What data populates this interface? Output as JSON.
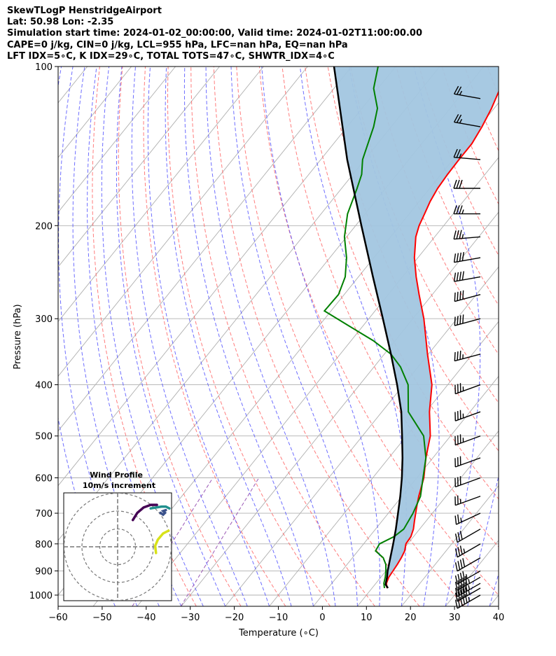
{
  "header": {
    "line1": "SkewTLogP HenstridgeAirport",
    "line2": "Lat: 50.98   Lon: -2.35",
    "line3": "Simulation start time: 2024-01-02_00:00:00, Valid time: 2024-01-02T11:00:00.00",
    "line4": "CAPE=0 j/kg, CIN=0 j/kg, LCL=955 hPa, LFC=nan hPa, EQ=nan hPa",
    "line5": "LFT IDX=5∘C, K IDX=29∘C, TOTAL TOTS=47∘C, SHWTR_IDX=4∘C"
  },
  "chart_data": {
    "type": "line",
    "subtype": "skew-t log-p",
    "xlabel": "Temperature (∘C)",
    "ylabel": "Pressure (hPa)",
    "xlim": [
      -60,
      40
    ],
    "ylim": [
      1050,
      100
    ],
    "yscale": "log",
    "x_ticks": [
      -60,
      -50,
      -40,
      -30,
      -20,
      -10,
      0,
      10,
      20,
      30,
      40
    ],
    "x_tick_labels": [
      "−60",
      "−50",
      "−40",
      "−30",
      "−20",
      "−10",
      "0",
      "10",
      "20",
      "30",
      "40"
    ],
    "y_ticks": [
      100,
      200,
      300,
      400,
      500,
      600,
      700,
      800,
      900,
      1000
    ],
    "y_tick_labels": [
      "100",
      "200",
      "300",
      "400",
      "500",
      "600",
      "700",
      "800",
      "900",
      "1000"
    ],
    "grid": true,
    "colors": {
      "temperature": "#ff0000",
      "dewpoint": "#008000",
      "parcel": "#000000",
      "shade": "#a2c6e0",
      "dry_adiabats": "#ff6666",
      "moist_adiabats": "#4a4aff",
      "mixing_ratio": "#9b59b6",
      "isotherms": "#b0b0b0"
    },
    "temperature": {
      "p": [
        970,
        950,
        925,
        900,
        875,
        850,
        825,
        800,
        775,
        750,
        725,
        700,
        675,
        650,
        600,
        550,
        500,
        450,
        400,
        350,
        300,
        270,
        250,
        230,
        210,
        200,
        190,
        180,
        170,
        160,
        150,
        140,
        130,
        120,
        110,
        100
      ],
      "t": [
        13.4,
        12.4,
        11.8,
        11.6,
        11.4,
        11.1,
        10.6,
        9.6,
        9.4,
        8.6,
        7.4,
        6.2,
        5.0,
        3.8,
        1.6,
        -1.6,
        -4.6,
        -9.2,
        -13.6,
        -20.2,
        -27.5,
        -33.0,
        -36.9,
        -40.8,
        -44.3,
        -45.6,
        -46.5,
        -47.5,
        -48.2,
        -48.5,
        -48.6,
        -48.6,
        -49.4,
        -50.6,
        -52.3,
        -54.0
      ]
    },
    "dewpoint": {
      "p": [
        970,
        950,
        925,
        900,
        875,
        850,
        825,
        800,
        775,
        750,
        700,
        650,
        600,
        550,
        500,
        450,
        400,
        370,
        350,
        330,
        310,
        290,
        270,
        250,
        230,
        210,
        190,
        170,
        160,
        150,
        130,
        120,
        110,
        100
      ],
      "td": [
        12.8,
        11.8,
        11.0,
        10.0,
        8.8,
        7.0,
        4.0,
        3.6,
        5.6,
        6.4,
        5.6,
        4.2,
        1.4,
        -1.6,
        -6.1,
        -14.0,
        -19.0,
        -24.0,
        -28.5,
        -35.0,
        -43.0,
        -51.5,
        -51.3,
        -53.0,
        -56.2,
        -60.5,
        -64.0,
        -66.5,
        -68.0,
        -70.5,
        -74.0,
        -76.5,
        -81.0,
        -84.0
      ]
    },
    "parcel": {
      "p": [
        970,
        955,
        925,
        900,
        850,
        800,
        750,
        700,
        650,
        600,
        550,
        500,
        450,
        400,
        350,
        300,
        250,
        200,
        150,
        100
      ],
      "t": [
        13.6,
        12.4,
        11.4,
        10.4,
        8.6,
        6.7,
        4.6,
        2.2,
        -0.4,
        -3.4,
        -6.9,
        -11.0,
        -15.6,
        -21.5,
        -28.5,
        -36.8,
        -46.7,
        -58.7,
        -74.0,
        -94.0
      ]
    },
    "wind_barbs": [
      {
        "p": 1000,
        "speed_kt": 55,
        "dir_deg": 240
      },
      {
        "p": 970,
        "speed_kt": 55,
        "dir_deg": 240
      },
      {
        "p": 950,
        "speed_kt": 55,
        "dir_deg": 240
      },
      {
        "p": 925,
        "speed_kt": 55,
        "dir_deg": 240
      },
      {
        "p": 900,
        "speed_kt": 45,
        "dir_deg": 240
      },
      {
        "p": 850,
        "speed_kt": 40,
        "dir_deg": 240
      },
      {
        "p": 800,
        "speed_kt": 35,
        "dir_deg": 240
      },
      {
        "p": 750,
        "speed_kt": 30,
        "dir_deg": 240
      },
      {
        "p": 700,
        "speed_kt": 25,
        "dir_deg": 245
      },
      {
        "p": 650,
        "speed_kt": 25,
        "dir_deg": 250
      },
      {
        "p": 600,
        "speed_kt": 30,
        "dir_deg": 250
      },
      {
        "p": 550,
        "speed_kt": 30,
        "dir_deg": 250
      },
      {
        "p": 500,
        "speed_kt": 35,
        "dir_deg": 250
      },
      {
        "p": 450,
        "speed_kt": 35,
        "dir_deg": 250
      },
      {
        "p": 400,
        "speed_kt": 35,
        "dir_deg": 250
      },
      {
        "p": 350,
        "speed_kt": 35,
        "dir_deg": 255
      },
      {
        "p": 300,
        "speed_kt": 40,
        "dir_deg": 255
      },
      {
        "p": 270,
        "speed_kt": 40,
        "dir_deg": 255
      },
      {
        "p": 250,
        "speed_kt": 40,
        "dir_deg": 260
      },
      {
        "p": 230,
        "speed_kt": 40,
        "dir_deg": 260
      },
      {
        "p": 210,
        "speed_kt": 35,
        "dir_deg": 265
      },
      {
        "p": 190,
        "speed_kt": 35,
        "dir_deg": 270
      },
      {
        "p": 170,
        "speed_kt": 30,
        "dir_deg": 270
      },
      {
        "p": 150,
        "speed_kt": 25,
        "dir_deg": 275
      },
      {
        "p": 130,
        "speed_kt": 25,
        "dir_deg": 280
      },
      {
        "p": 115,
        "speed_kt": 25,
        "dir_deg": 280
      }
    ],
    "inset": {
      "title_line1": "Wind Profile",
      "title_line2": "10m/s increment",
      "ring_step_ms": 10,
      "ring_count": 3,
      "hodograph_segments": [
        {
          "color": "#d8e219",
          "points": [
            [
              21.5,
              -3.5
            ],
            [
              21.0,
              0.5
            ],
            [
              22.5,
              4.0
            ],
            [
              25.5,
              7.5
            ],
            [
              28.5,
              9.0
            ]
          ]
        },
        {
          "color": "#3b528b",
          "points": [
            [
              24.0,
              19.0
            ],
            [
              25.5,
              18.0
            ],
            [
              26.5,
              19.0
            ],
            [
              25.5,
              20.0
            ],
            [
              27.0,
              20.5
            ]
          ]
        },
        {
          "color": "#21908d",
          "points": [
            [
              18.5,
              21.5
            ],
            [
              21.5,
              22.0
            ],
            [
              24.5,
              22.5
            ],
            [
              27.0,
              22.5
            ],
            [
              29.0,
              21.5
            ]
          ]
        },
        {
          "color": "#440154",
          "points": [
            [
              8.5,
              15.0
            ],
            [
              11.0,
              19.0
            ],
            [
              14.5,
              22.0
            ],
            [
              18.5,
              23.5
            ],
            [
              22.0,
              23.5
            ]
          ]
        }
      ]
    }
  }
}
